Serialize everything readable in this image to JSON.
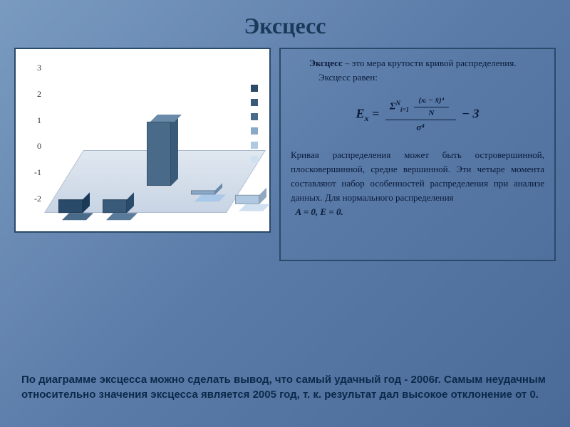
{
  "title": "Эксцесс",
  "chart": {
    "type": "3d-bar",
    "y_ticks": [
      "3",
      "2",
      "1",
      "0",
      "-1",
      "-2"
    ],
    "ylim": [
      -2,
      3
    ],
    "bars": [
      {
        "value": -0.6,
        "color": "#2a4a6a",
        "top": "#4a6a8a",
        "side": "#1a3a5a"
      },
      {
        "value": -0.6,
        "color": "#3a5a7a",
        "top": "#5a7a9a",
        "side": "#2a4a6a"
      },
      {
        "value": 2.8,
        "color": "#4a6a8a",
        "top": "#6a8aaa",
        "side": "#3a5a7a"
      },
      {
        "value": -0.2,
        "color": "#8aa8c8",
        "top": "#aac8e8",
        "side": "#6a88a8"
      },
      {
        "value": -0.4,
        "color": "#b0c8e0",
        "top": "#d0e0f0",
        "side": "#90a8c0"
      }
    ],
    "legend_colors": [
      "#2a4a6a",
      "#3a5a7a",
      "#4a6a8a",
      "#8aa8c8",
      "#b0c8e0",
      "#d0e0f0"
    ],
    "background": "#ffffff",
    "floor_color": "#d4dce8"
  },
  "text": {
    "p1_lead": "Эксцесс",
    "p1_rest": " – это мера крутости кривой распределения.",
    "p2": "Эксцесс равен:",
    "formula": {
      "lhs": "E",
      "sub": "x",
      "eq": " = ",
      "sum": "Σ",
      "sum_top": "N",
      "sum_bot": "i=1",
      "num_inner": "(xᵢ − x̄)⁴",
      "den_inner": "N",
      "outer_den": "σ⁴",
      "minus3": " − 3"
    },
    "p3": "Кривая распределения может быть островершинной, плосковершинной, средне вершинной. Эти четыре момента составляют набор особенностей распределения при анализе данных. Для нормального распределения",
    "p4": "A = 0,   E = 0."
  },
  "conclusion": "По диаграмме эксцесса можно сделать вывод, что самый удачный год - 2006г. Самым неудачным относительно значения эксцесса является 2005 год, т. к.  результат дал высокое отклонение от 0."
}
